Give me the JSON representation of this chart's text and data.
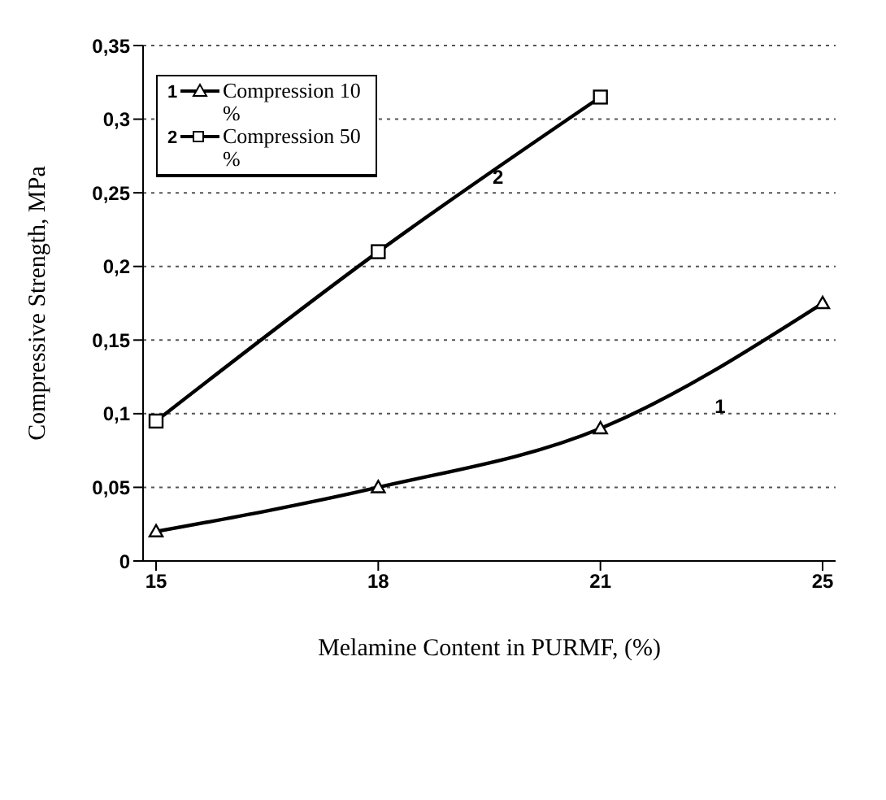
{
  "chart_data": {
    "type": "line",
    "xlabel": "Melamine Content in PURMF, (%)",
    "ylabel": "Compressive Strength, MPa",
    "categories": [
      "15",
      "18",
      "21",
      "25"
    ],
    "series": [
      {
        "name": "Compression 10 %",
        "color": "#000000",
        "marker": "triangle",
        "values": [
          0.02,
          0.05,
          0.09,
          0.175
        ]
      },
      {
        "name": "Compression 50 %",
        "color": "#000000",
        "marker": "square",
        "values": [
          0.095,
          0.21,
          0.315,
          null
        ]
      }
    ],
    "annotations": [
      "1",
      "2"
    ],
    "ylim": [
      0,
      0.35
    ],
    "yticks": [
      0,
      {
        "value": 0.05,
        "label": "0,05"
      },
      {
        "value": 0.1,
        "label": "0,1"
      },
      {
        "value": 0.15,
        "label": "0,15"
      },
      {
        "value": 0.2,
        "label": "0,2"
      },
      {
        "value": 0.25,
        "label": "0,25"
      },
      {
        "value": 0.3,
        "label": "0,3"
      },
      {
        "value": 0.35,
        "label": "0,35"
      }
    ],
    "grid": "y",
    "legend": "top left",
    "line_style": "solid"
  }
}
